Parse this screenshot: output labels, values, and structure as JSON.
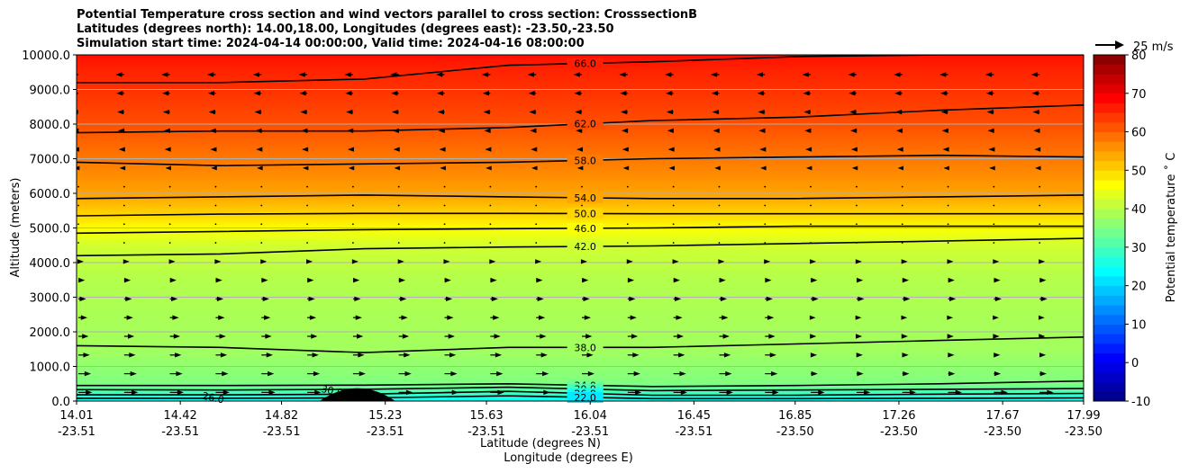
{
  "chart_data": {
    "type": "heatmap",
    "title_lines": [
      "Potential Temperature cross section and wind vectors parallel to cross section: CrosssectionB",
      "Latitudes (degrees north): 14.00,18.00, Longitudes (degrees east): -23.50,-23.50",
      "Simulation start time: 2024-04-14 00:00:00, Valid time: 2024-04-16 08:00:00"
    ],
    "xlabel_lat": "Latitude (degrees N)",
    "xlabel_lon": "Longitude (degrees E)",
    "ylabel": "Altitude (meters)",
    "colorbar_label": "Potential temperature ˚ C",
    "quiver_key_label": "25 m/s",
    "x_ticks": [
      {
        "lat": "14.01",
        "lon": "-23.51"
      },
      {
        "lat": "14.42",
        "lon": "-23.51"
      },
      {
        "lat": "14.82",
        "lon": "-23.51"
      },
      {
        "lat": "15.23",
        "lon": "-23.51"
      },
      {
        "lat": "15.63",
        "lon": "-23.51"
      },
      {
        "lat": "16.04",
        "lon": "-23.51"
      },
      {
        "lat": "16.45",
        "lon": "-23.51"
      },
      {
        "lat": "16.85",
        "lon": "-23.50"
      },
      {
        "lat": "17.26",
        "lon": "-23.50"
      },
      {
        "lat": "17.67",
        "lon": "-23.50"
      },
      {
        "lat": "17.99",
        "lon": "-23.50"
      }
    ],
    "y_ticks": [
      "0.0",
      "1000.0",
      "2000.0",
      "3000.0",
      "4000.0",
      "5000.0",
      "6000.0",
      "7000.0",
      "8000.0",
      "9000.0",
      "10000.0"
    ],
    "y_tick_values": [
      0,
      1000,
      2000,
      3000,
      4000,
      5000,
      6000,
      7000,
      8000,
      9000,
      10000
    ],
    "ylim": [
      0,
      10000
    ],
    "colorbar_ticks": [
      -10,
      0,
      10,
      20,
      30,
      40,
      50,
      60,
      70,
      80
    ],
    "colorbar_range": [
      -10,
      80
    ],
    "colormap": "jet",
    "grid": "horizontal",
    "contours": [
      {
        "label": "66.0",
        "value": 66,
        "alts": [
          9200,
          9200,
          9300,
          9700,
          9800,
          9950,
          10000,
          10000
        ]
      },
      {
        "label": "62.0",
        "value": 62,
        "alts": [
          7750,
          7800,
          7800,
          7900,
          8100,
          8200,
          8400,
          8550
        ]
      },
      {
        "label": "58.0",
        "value": 58,
        "alts": [
          6900,
          6800,
          6850,
          6900,
          7000,
          7050,
          7100,
          7050
        ]
      },
      {
        "label": "54.0",
        "value": 54,
        "alts": [
          5850,
          5900,
          5950,
          5900,
          5850,
          5850,
          5900,
          5950
        ]
      },
      {
        "label": "50.0",
        "value": 50,
        "alts": [
          5350,
          5400,
          5420,
          5420,
          5410,
          5410,
          5410,
          5410
        ]
      },
      {
        "label": "46.0",
        "value": 46,
        "alts": [
          4850,
          4900,
          4950,
          4980,
          5000,
          5050,
          5050,
          5050
        ]
      },
      {
        "label": "42.0",
        "value": 42,
        "alts": [
          4200,
          4250,
          4400,
          4450,
          4480,
          4550,
          4620,
          4700
        ]
      },
      {
        "label": "38.0",
        "value": 38,
        "alts": [
          1600,
          1550,
          1400,
          1550,
          1550,
          1650,
          1750,
          1850
        ]
      },
      {
        "label": "34.0",
        "value": 34,
        "alts": [
          450,
          450,
          460,
          500,
          420,
          450,
          500,
          580
        ]
      },
      {
        "label": "30.0",
        "value": 30,
        "alts": [
          330,
          320,
          340,
          400,
          300,
          320,
          340,
          360
        ]
      },
      {
        "label": "26.0",
        "value": 26,
        "alts": [
          180,
          180,
          200,
          280,
          170,
          170,
          200,
          220
        ]
      },
      {
        "label": "22.0",
        "value": 22,
        "alts": [
          80,
          80,
          90,
          150,
          70,
          70,
          80,
          90
        ]
      }
    ],
    "extra_contour_labels": [
      {
        "label": "26.0",
        "lat": 14.55,
        "alt": 100
      },
      {
        "label": "30.0",
        "lat": 15.02,
        "alt": 300
      }
    ],
    "terrain": {
      "lat_start": 14.97,
      "lat_peak": 15.12,
      "lat_end": 15.27,
      "peak_alt": 220
    }
  }
}
